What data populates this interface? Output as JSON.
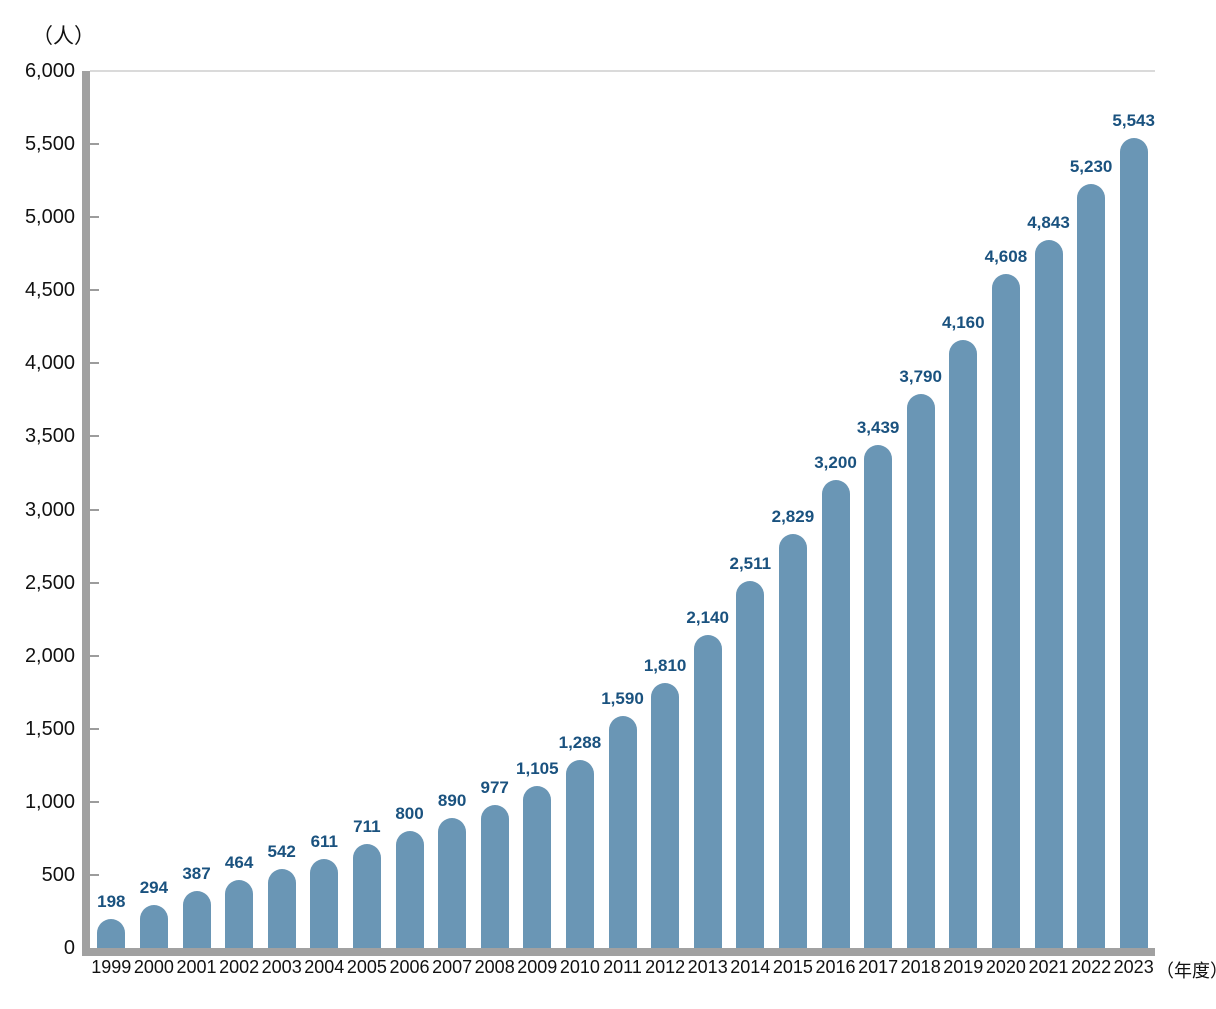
{
  "chart_data": {
    "type": "bar",
    "title": "",
    "unit_label": "（人）",
    "x_suffix_label": "（年度）",
    "categories": [
      "1999",
      "2000",
      "2001",
      "2002",
      "2003",
      "2004",
      "2005",
      "2006",
      "2007",
      "2008",
      "2009",
      "2010",
      "2011",
      "2012",
      "2013",
      "2014",
      "2015",
      "2016",
      "2017",
      "2018",
      "2019",
      "2020",
      "2021",
      "2022",
      "2023"
    ],
    "values": [
      198,
      294,
      387,
      464,
      542,
      611,
      711,
      800,
      890,
      977,
      1105,
      1288,
      1590,
      1810,
      2140,
      2511,
      2829,
      3200,
      3439,
      3790,
      4160,
      4608,
      4843,
      5230,
      5543
    ],
    "value_labels": [
      "198",
      "294",
      "387",
      "464",
      "542",
      "611",
      "711",
      "800",
      "890",
      "977",
      "1,105",
      "1,288",
      "1,590",
      "1,810",
      "2,140",
      "2,511",
      "2,829",
      "3,200",
      "3,439",
      "3,790",
      "4,160",
      "4,608",
      "4,843",
      "5,230",
      "5,543"
    ],
    "y_tick_values": [
      0,
      500,
      1000,
      1500,
      2000,
      2500,
      3000,
      3500,
      4000,
      4500,
      5000,
      5500,
      6000
    ],
    "y_tick_labels": [
      "0",
      "500",
      "1,000",
      "1,500",
      "2,000",
      "2,500",
      "3,000",
      "3,500",
      "4,000",
      "4,500",
      "5,000",
      "5,500",
      "6,000"
    ],
    "ylim": [
      0,
      6000
    ],
    "grid": "top-line-only",
    "legend": "none",
    "colors": {
      "bar": "#6A96B5",
      "value_label": "#1A527F",
      "axis": "#A1A1A1",
      "gridline": "#DADADA",
      "tick_label": "#111111"
    }
  }
}
